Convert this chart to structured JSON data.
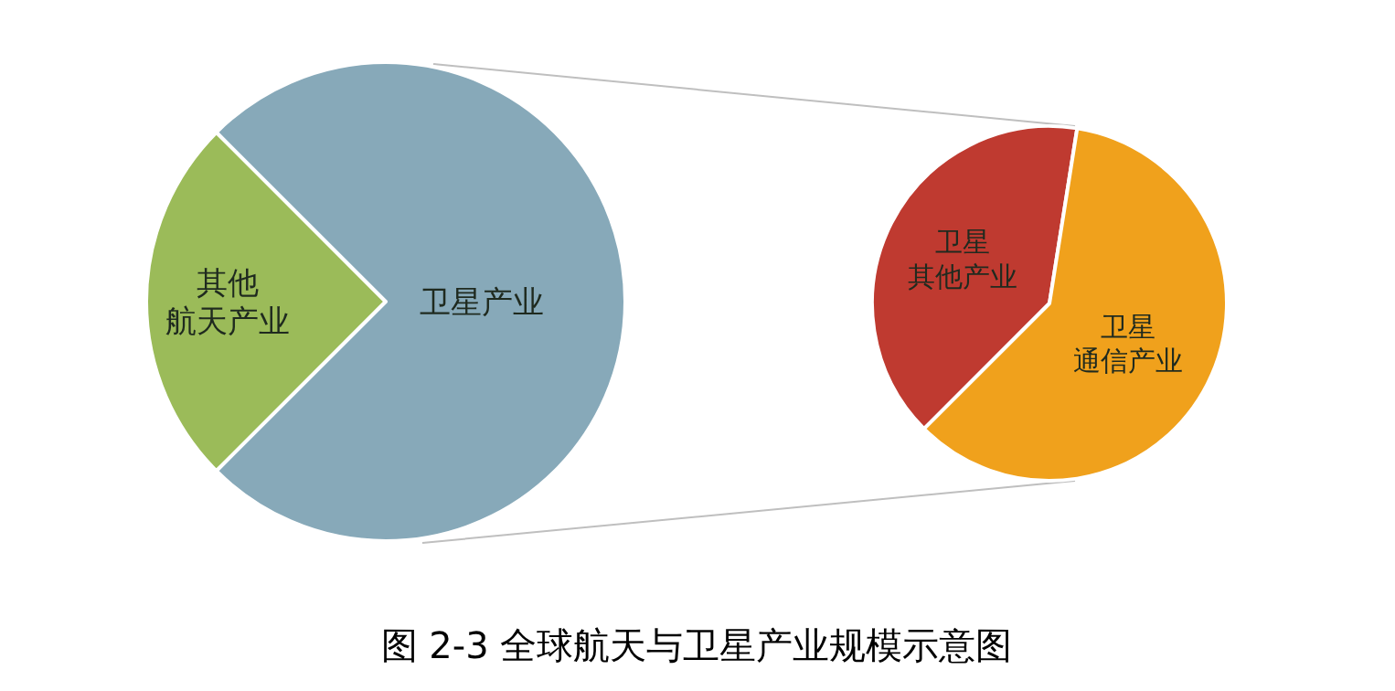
{
  "chart_data": [
    {
      "type": "pie",
      "categories": [
        "其他航天产业",
        "卫星产业"
      ],
      "values": [
        25,
        75
      ],
      "colors": [
        "#9bbb59",
        "#87a9b9"
      ],
      "annotations": [
        "图 2-3 全球航天与卫星产业规模示意图"
      ]
    },
    {
      "type": "pie",
      "categories": [
        "卫星其他产业",
        "卫星通信产业"
      ],
      "values": [
        40,
        60
      ],
      "colors": [
        "#bf3a30",
        "#f0a11c"
      ]
    }
  ]
}
